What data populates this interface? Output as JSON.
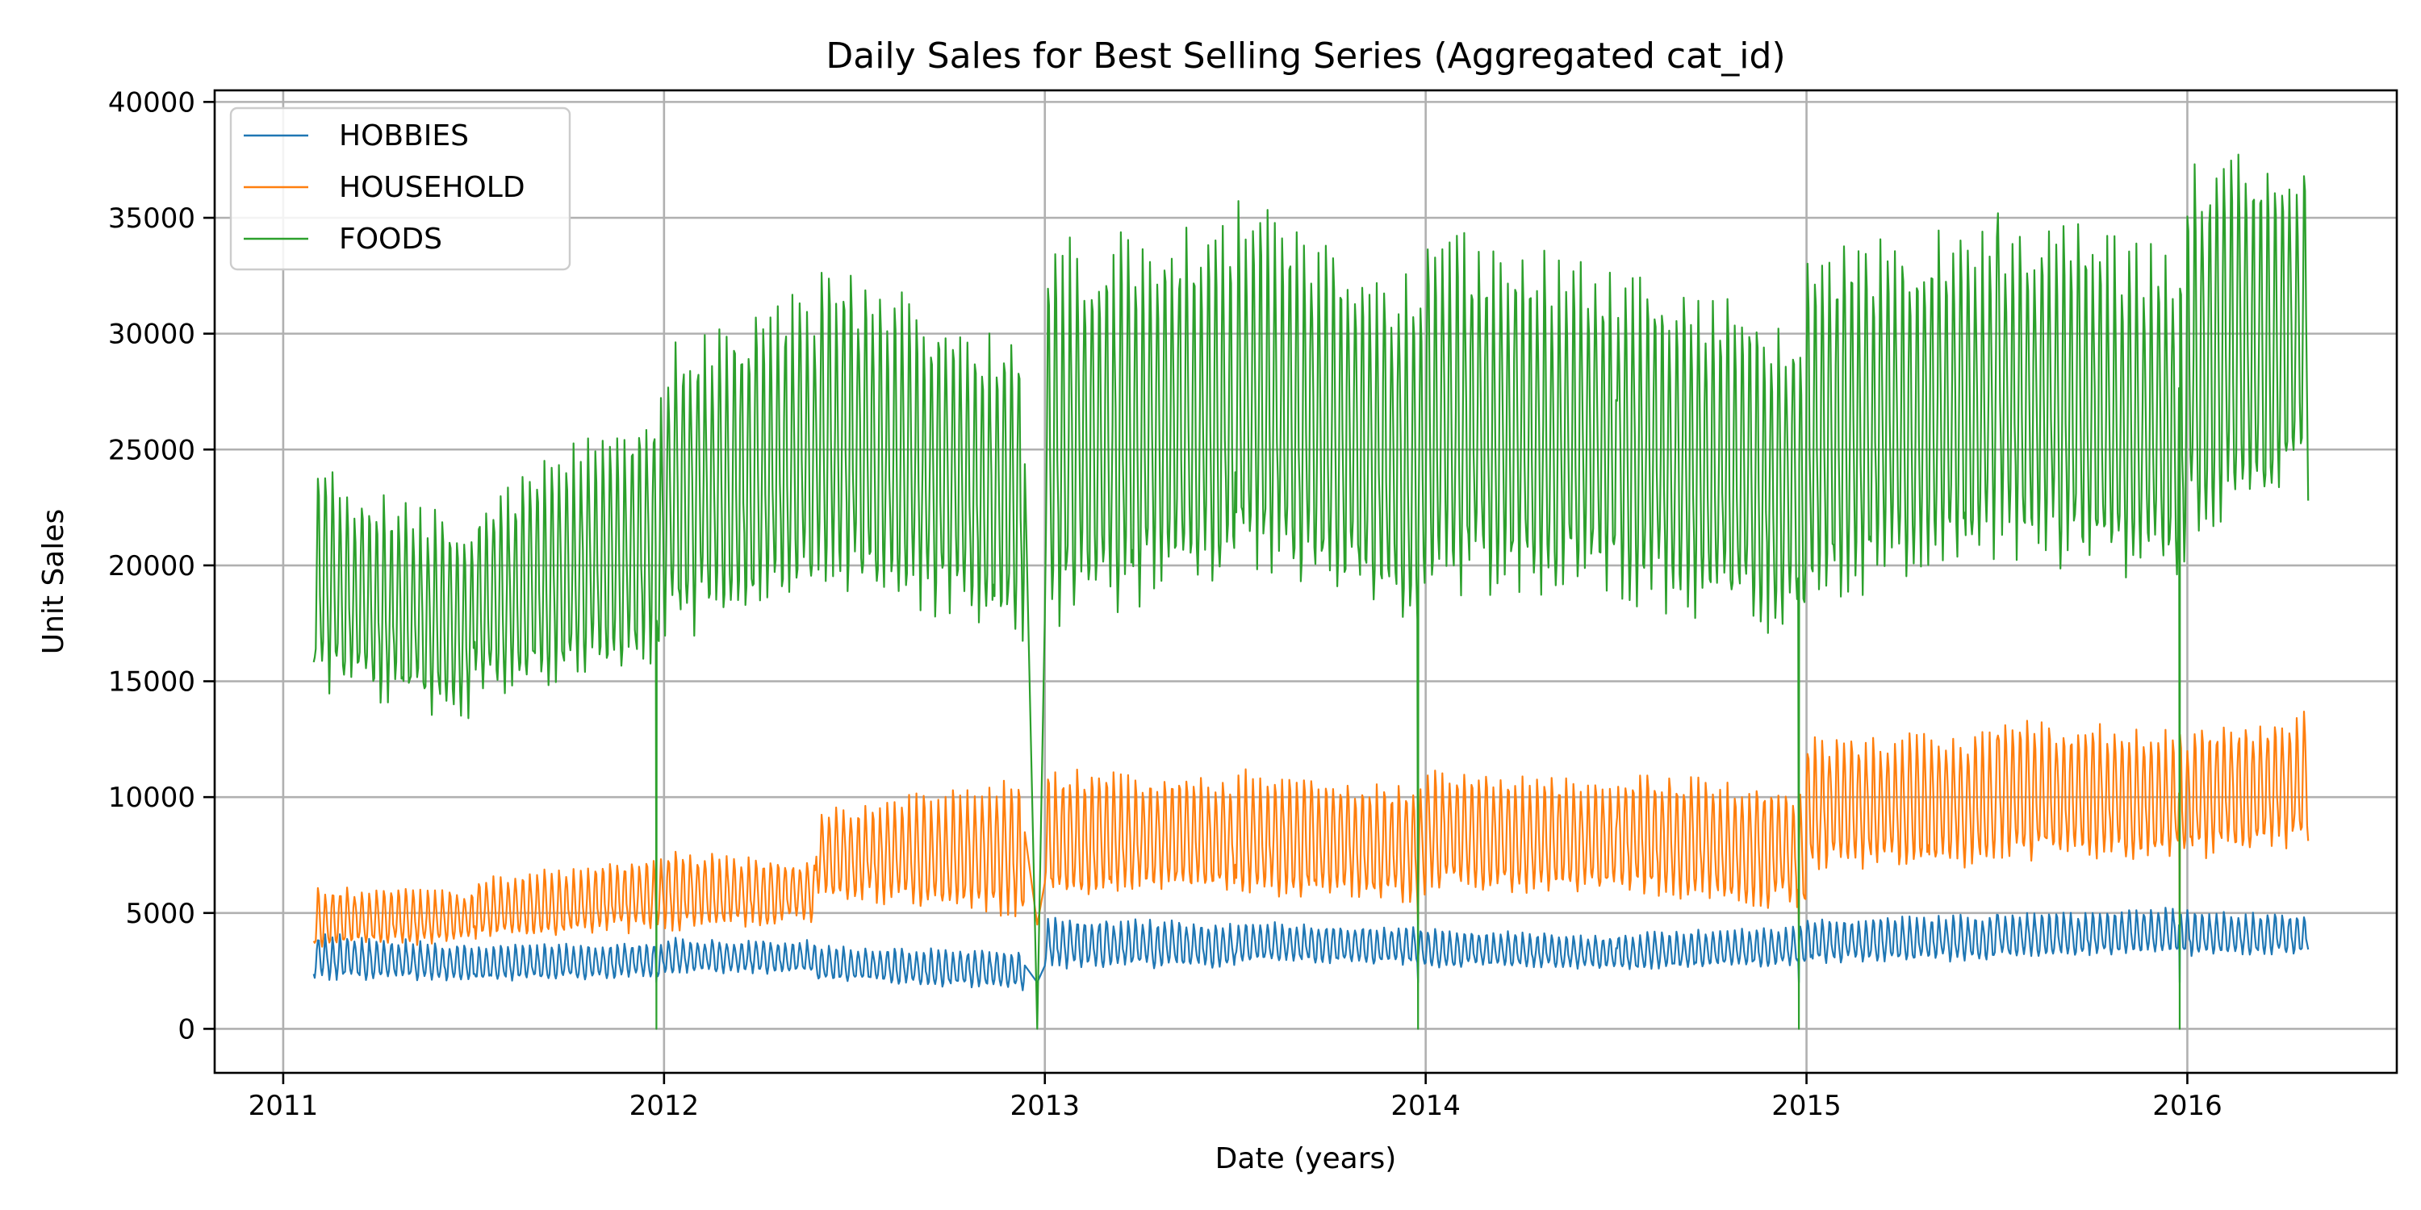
{
  "chart_data": {
    "type": "line",
    "title": "Daily Sales for Best Selling Series (Aggregated cat_id)",
    "xlabel": "Date (years)",
    "ylabel": "Unit Sales",
    "x_unit": "decimal year",
    "xlim": [
      2010.82,
      2016.55
    ],
    "ylim": [
      -1900,
      40500
    ],
    "x_ticks": [
      2011,
      2012,
      2013,
      2014,
      2015,
      2016
    ],
    "x_tick_labels": [
      "2011",
      "2012",
      "2013",
      "2014",
      "2015",
      "2016"
    ],
    "y_ticks": [
      0,
      5000,
      10000,
      15000,
      20000,
      25000,
      30000,
      35000,
      40000
    ],
    "y_tick_labels": [
      "0",
      "5000",
      "10000",
      "15000",
      "20000",
      "25000",
      "30000",
      "35000",
      "40000"
    ],
    "grid": true,
    "legend_position": "top-left",
    "sampling": "approximate weekly peaks (p) and troughs (t), read from the plot",
    "christmas_drops": [
      {
        "x": 2011.98,
        "value": 0
      },
      {
        "x": 2012.98,
        "value": 0
      },
      {
        "x": 2013.98,
        "value": 0
      },
      {
        "x": 2014.98,
        "value": 0
      },
      {
        "x": 2015.98,
        "value": 0
      }
    ],
    "series": [
      {
        "name": "HOBBIES",
        "color": "#1f77b4",
        "segments": [
          {
            "x": [
              2011.08,
              2011.5
            ],
            "p": [
              4000,
              3500
            ],
            "t": [
              2300,
              2200
            ]
          },
          {
            "x": [
              2011.5,
              2012.0
            ],
            "p": [
              3500,
              3600
            ],
            "t": [
              2200,
              2300
            ]
          },
          {
            "x": [
              2012.0,
              2012.4
            ],
            "p": [
              3800,
              3700
            ],
            "t": [
              2500,
              2500
            ]
          },
          {
            "x": [
              2012.4,
              2012.95
            ],
            "p": [
              3500,
              3200
            ],
            "t": [
              2200,
              1800
            ]
          },
          {
            "x": [
              2013.0,
              2013.5
            ],
            "p": [
              4700,
              4400
            ],
            "t": [
              2800,
              2800
            ]
          },
          {
            "x": [
              2013.5,
              2014.0
            ],
            "p": [
              4500,
              4300
            ],
            "t": [
              3000,
              2900
            ]
          },
          {
            "x": [
              2014.0,
              2014.5
            ],
            "p": [
              4200,
              3900
            ],
            "t": [
              2800,
              2700
            ]
          },
          {
            "x": [
              2014.5,
              2015.0
            ],
            "p": [
              4000,
              4300
            ],
            "t": [
              2600,
              2900
            ]
          },
          {
            "x": [
              2015.0,
              2015.5
            ],
            "p": [
              4600,
              4800
            ],
            "t": [
              3000,
              3100
            ]
          },
          {
            "x": [
              2015.5,
              2016.0
            ],
            "p": [
              4800,
              5100
            ],
            "t": [
              3200,
              3400
            ]
          },
          {
            "x": [
              2016.0,
              2016.32
            ],
            "p": [
              5000,
              4800
            ],
            "t": [
              3300,
              3400
            ]
          }
        ]
      },
      {
        "name": "HOUSEHOLD",
        "color": "#ff7f0e",
        "segments": [
          {
            "x": [
              2011.08,
              2011.5
            ],
            "p": [
              5900,
              5800
            ],
            "t": [
              3700,
              3900
            ]
          },
          {
            "x": [
              2011.5,
              2012.0
            ],
            "p": [
              6300,
              7200
            ],
            "t": [
              4000,
              4500
            ]
          },
          {
            "x": [
              2012.0,
              2012.4
            ],
            "p": [
              7400,
              7000
            ],
            "t": [
              4500,
              4800
            ]
          },
          {
            "x": [
              2012.4,
              2012.95
            ],
            "p": [
              9200,
              10300
            ],
            "t": [
              6000,
              5200
            ]
          },
          {
            "x": [
              2013.0,
              2013.5
            ],
            "p": [
              10800,
              10500
            ],
            "t": [
              6000,
              6300
            ]
          },
          {
            "x": [
              2013.5,
              2014.0
            ],
            "p": [
              10800,
              10000
            ],
            "t": [
              6300,
              5800
            ]
          },
          {
            "x": [
              2014.0,
              2014.5
            ],
            "p": [
              11000,
              10200
            ],
            "t": [
              6300,
              6200
            ]
          },
          {
            "x": [
              2014.5,
              2015.0
            ],
            "p": [
              10800,
              10000
            ],
            "t": [
              6300,
              5500
            ]
          },
          {
            "x": [
              2015.0,
              2015.5
            ],
            "p": [
              12200,
              12300
            ],
            "t": [
              7300,
              7500
            ]
          },
          {
            "x": [
              2015.5,
              2016.0
            ],
            "p": [
              12800,
              12500
            ],
            "t": [
              7800,
              7700
            ]
          },
          {
            "x": [
              2016.0,
              2016.32
            ],
            "p": [
              12500,
              13200
            ],
            "t": [
              7800,
              8300
            ]
          }
        ]
      },
      {
        "name": "FOODS",
        "color": "#2ca02c",
        "segments": [
          {
            "x": [
              2011.08,
              2011.5
            ],
            "p": [
              23500,
              21000
            ],
            "t": [
              15500,
              13800
            ]
          },
          {
            "x": [
              2011.5,
              2012.0
            ],
            "p": [
              22000,
              26500
            ],
            "t": [
              15000,
              16500
            ]
          },
          {
            "x": [
              2012.0,
              2012.4
            ],
            "p": [
              28500,
              31000
            ],
            "t": [
              17800,
              19500
            ]
          },
          {
            "x": [
              2012.4,
              2012.95
            ],
            "p": [
              32000,
              28500
            ],
            "t": [
              20500,
              17500
            ]
          },
          {
            "x": [
              2013.0,
              2013.5
            ],
            "p": [
              32500,
              33500
            ],
            "t": [
              18500,
              20500
            ]
          },
          {
            "x": [
              2013.5,
              2014.0
            ],
            "p": [
              34500,
              31000
            ],
            "t": [
              21000,
              18500
            ]
          },
          {
            "x": [
              2014.0,
              2014.5
            ],
            "p": [
              33500,
              31500
            ],
            "t": [
              20000,
              20000
            ]
          },
          {
            "x": [
              2014.5,
              2015.0
            ],
            "p": [
              31500,
              29500
            ],
            "t": [
              19500,
              18000
            ]
          },
          {
            "x": [
              2015.0,
              2015.5
            ],
            "p": [
              32500,
              33500
            ],
            "t": [
              19500,
              21500
            ]
          },
          {
            "x": [
              2015.5,
              2016.0
            ],
            "p": [
              34000,
              32500
            ],
            "t": [
              21500,
              20000
            ]
          },
          {
            "x": [
              2016.0,
              2016.32
            ],
            "p": [
              36000,
              37000
            ],
            "t": [
              22500,
              24000
            ]
          }
        ]
      }
    ]
  }
}
